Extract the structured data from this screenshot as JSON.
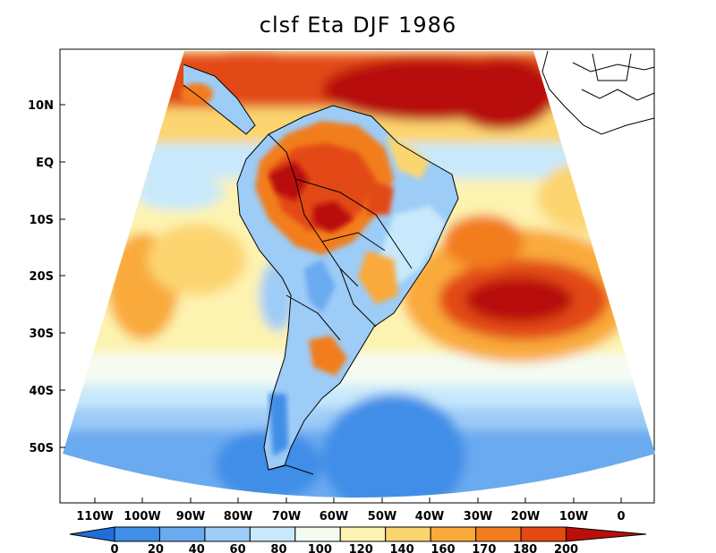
{
  "title": "clsf Eta DJF 1986",
  "y_axis_labels": [
    "10N",
    "EQ",
    "10S",
    "20S",
    "30S",
    "40S",
    "50S"
  ],
  "x_axis_labels": [
    "110W",
    "100W",
    "90W",
    "80W",
    "70W",
    "60W",
    "50W",
    "40W",
    "30W",
    "20W",
    "10W",
    "0"
  ],
  "colorbar": {
    "labels": [
      "0",
      "20",
      "40",
      "60",
      "80",
      "100",
      "120",
      "140",
      "160",
      "170",
      "180",
      "200"
    ],
    "colors": [
      "#1f6fd8",
      "#3f8ee8",
      "#6aaaf0",
      "#9dccf7",
      "#c8e9fb",
      "#f4fcf2",
      "#fdf3b0",
      "#fcd56f",
      "#f9aa3a",
      "#f27d1e",
      "#e24a12",
      "#b80f0a"
    ]
  }
}
